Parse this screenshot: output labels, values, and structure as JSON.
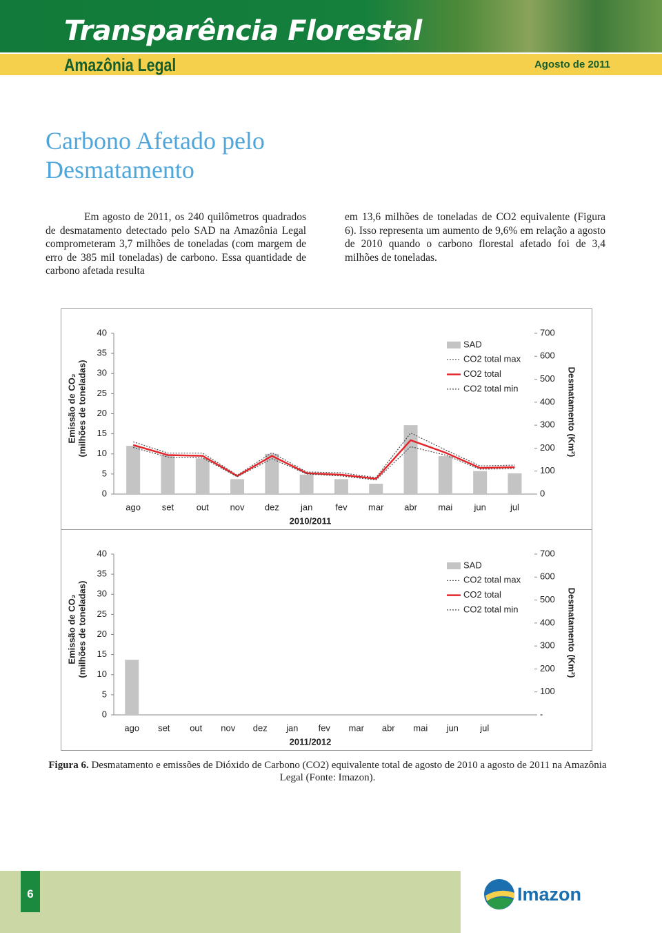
{
  "header": {
    "title": "Transparência Florestal",
    "subtitle": "Amazônia Legal",
    "date": "Agosto de 2011"
  },
  "section_title": "Carbono Afetado pelo Desmatamento",
  "body": {
    "column_left": "Em agosto de 2011, os 240 quilômetros quadrados de desmatamento detectado pelo SAD na Amazônia Legal comprometeram 3,7 milhões de toneladas (com margem de erro de 385 mil toneladas) de carbono. Essa quantidade de carbono afetada resulta",
    "column_right": "em 13,6 milhões de toneladas de CO2 equivalente (Figura 6). Isso representa um aumento de 9,6% em relação a agosto de 2010 quando o carbono florestal afetado foi de 3,4 milhões de toneladas."
  },
  "chart_data": [
    {
      "type": "combo",
      "x_label": "2010/2011",
      "y_label": [
        "Emissão de CO₂",
        "(milhões de toneladas)"
      ],
      "y2_label": "Desmatamento (Km²)",
      "categories": [
        "ago",
        "set",
        "out",
        "nov",
        "dez",
        "jan",
        "fev",
        "mar",
        "abr",
        "mai",
        "jun",
        "jul"
      ],
      "series": [
        {
          "name": "SAD",
          "type": "bar",
          "axis": "y2",
          "color": "#c4c4c4",
          "values": [
            210,
            170,
            155,
            65,
            175,
            85,
            65,
            45,
            300,
            165,
            100,
            90
          ]
        },
        {
          "name": "CO2 total max",
          "type": "line",
          "dash": "dotted",
          "color": "#4a4a4a",
          "values": [
            13.0,
            10.2,
            10.2,
            4.7,
            10.3,
            5.5,
            5.3,
            4.1,
            15.2,
            11.0,
            7.0,
            7.2
          ]
        },
        {
          "name": "CO2 total",
          "type": "line",
          "color": "#e3262b",
          "values": [
            12.2,
            9.7,
            9.5,
            4.5,
            9.5,
            5.2,
            4.8,
            3.8,
            13.4,
            10.3,
            6.5,
            6.7
          ]
        },
        {
          "name": "CO2 total min",
          "type": "line",
          "dash": "dotted",
          "color": "#4a4a4a",
          "values": [
            11.6,
            9.2,
            9.0,
            4.3,
            8.8,
            5.0,
            4.5,
            3.5,
            11.8,
            9.7,
            6.2,
            6.3
          ]
        }
      ],
      "ylim": [
        0,
        40
      ],
      "yticks": [
        0,
        5,
        10,
        15,
        20,
        25,
        30,
        35,
        40
      ],
      "y2lim": [
        0,
        700
      ],
      "y2ticks": [
        0,
        100,
        200,
        300,
        400,
        500,
        600,
        700
      ],
      "legend": "upper right"
    },
    {
      "type": "combo",
      "x_label": "2011/2012",
      "y_label": [
        "Emissão de CO₂",
        "(milhões de toneladas)"
      ],
      "y2_label": "Desmatamento (Km²)",
      "categories": [
        "ago",
        "set",
        "out",
        "nov",
        "dez",
        "jan",
        "fev",
        "mar",
        "abr",
        "mai",
        "jun",
        "jul"
      ],
      "series": [
        {
          "name": "SAD",
          "type": "bar",
          "axis": "y2",
          "color": "#c4c4c4",
          "values": [
            240,
            null,
            null,
            null,
            null,
            null,
            null,
            null,
            null,
            null,
            null,
            null
          ]
        },
        {
          "name": "CO2 total max",
          "type": "line",
          "dash": "dotted",
          "color": "#4a4a4a",
          "values": [
            null,
            null,
            null,
            null,
            null,
            null,
            null,
            null,
            null,
            null,
            null,
            null
          ]
        },
        {
          "name": "CO2 total",
          "type": "line",
          "color": "#e3262b",
          "values": [
            null,
            null,
            null,
            null,
            null,
            null,
            null,
            null,
            null,
            null,
            null,
            null
          ]
        },
        {
          "name": "CO2 total min",
          "type": "line",
          "dash": "dotted",
          "color": "#4a4a4a",
          "values": [
            null,
            null,
            null,
            null,
            null,
            null,
            null,
            null,
            null,
            null,
            null,
            null
          ]
        }
      ],
      "ylim": [
        0,
        40
      ],
      "yticks": [
        0,
        5,
        10,
        15,
        20,
        25,
        30,
        35,
        40
      ],
      "y2lim": [
        0,
        700
      ],
      "y2ticks": [
        {
          "value": 0,
          "label": "-"
        },
        100,
        200,
        300,
        400,
        500,
        600,
        700
      ],
      "legend": "upper right"
    }
  ],
  "caption": {
    "label": "Figura 6.",
    "text": "Desmatamento e emissões de Dióxido de Carbono (CO2) equivalente total de agosto de 2010 a agosto de 2011 na Amazônia Legal (Fonte: Imazon)."
  },
  "footer": {
    "page_number": "6",
    "logo": "Imazon"
  }
}
